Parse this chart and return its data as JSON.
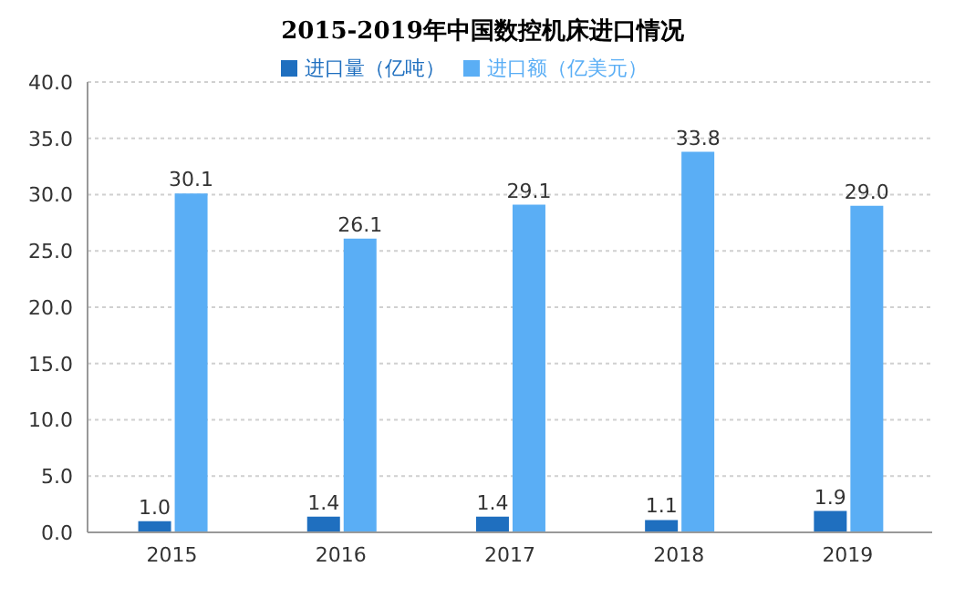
{
  "chart_data": {
    "type": "bar",
    "title": "2015-2019年中国数控机床进口情况",
    "categories": [
      "2015",
      "2016",
      "2017",
      "2018",
      "2019"
    ],
    "series": [
      {
        "name": "进口量（亿吨）",
        "color": "#1f6fbf",
        "values": [
          1.0,
          1.4,
          1.4,
          1.1,
          1.9
        ],
        "value_labels": [
          "1.0",
          "1.4",
          "1.4",
          "1.1",
          "1.9"
        ]
      },
      {
        "name": "进口额（亿美元）",
        "color": "#5aaef5",
        "values": [
          30.1,
          26.1,
          29.1,
          33.8,
          29.0
        ],
        "value_labels": [
          "30.1",
          "26.1",
          "29.1",
          "33.8",
          "29.0"
        ]
      }
    ],
    "ylim": [
      0,
      40
    ],
    "yticks": [
      {
        "value": 0,
        "label": "0.0"
      },
      {
        "value": 5,
        "label": "5.0"
      },
      {
        "value": 10,
        "label": "10.0"
      },
      {
        "value": 15,
        "label": "15.0"
      },
      {
        "value": 20,
        "label": "20.0"
      },
      {
        "value": 25,
        "label": "25.0"
      },
      {
        "value": 30,
        "label": "30.0"
      },
      {
        "value": 35,
        "label": "35.0"
      },
      {
        "value": 40,
        "label": "40.0"
      }
    ],
    "grid": "y",
    "legend": "top"
  }
}
